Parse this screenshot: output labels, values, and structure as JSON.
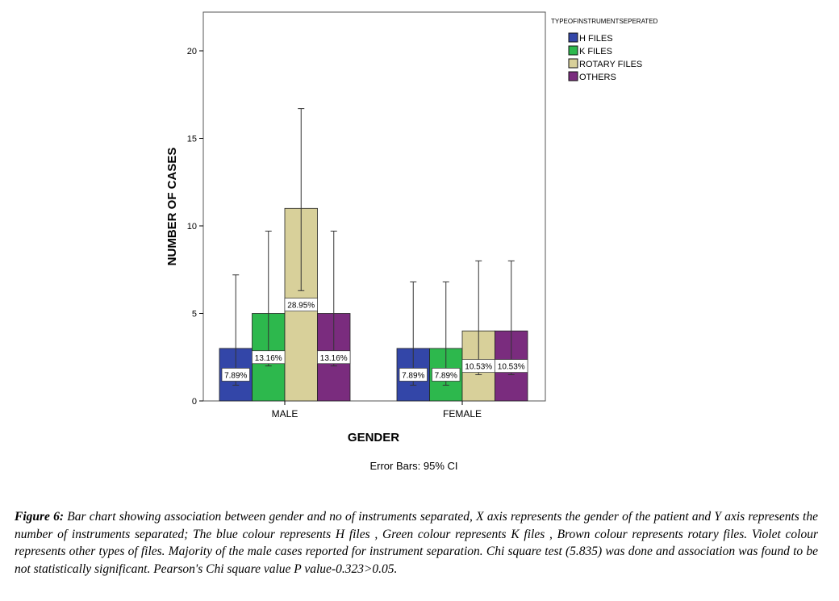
{
  "chart_data": {
    "type": "bar",
    "title": "",
    "xlabel": "GENDER",
    "ylabel": "NUMBER OF CASES",
    "ylim": [
      0,
      22
    ],
    "yticks": [
      0,
      5,
      10,
      15,
      20
    ],
    "categories": [
      "MALE",
      "FEMALE"
    ],
    "legend_title": "TYPEOFINSTRUMENTSEPERATED",
    "legend_position": "top-right",
    "note": "Error Bars: 95% CI",
    "series": [
      {
        "name": "H FILES",
        "color": "#3346a8",
        "values": [
          3,
          3
        ],
        "labels": [
          "7.89%",
          "7.89%"
        ],
        "ci_low": [
          0.9,
          0.9
        ],
        "ci_high": [
          7.2,
          6.8
        ]
      },
      {
        "name": "K FILES",
        "color": "#2db84d",
        "values": [
          5,
          3
        ],
        "labels": [
          "13.16%",
          "7.89%"
        ],
        "ci_low": [
          2.0,
          0.9
        ],
        "ci_high": [
          9.7,
          6.8
        ]
      },
      {
        "name": "ROTARY FILES",
        "color": "#d8d09a",
        "values": [
          11,
          4
        ],
        "labels": [
          "28.95%",
          "10.53%"
        ],
        "ci_low": [
          6.3,
          1.5
        ],
        "ci_high": [
          16.7,
          8.0
        ]
      },
      {
        "name": "OTHERS",
        "color": "#7a2c7e",
        "values": [
          5,
          4
        ],
        "labels": [
          "13.16%",
          "10.53%"
        ],
        "ci_low": [
          2.0,
          1.5
        ],
        "ci_high": [
          9.7,
          8.0
        ]
      }
    ]
  },
  "caption": {
    "label": "Figure 6:",
    "text": " Bar chart showing association between gender and no of instruments separated, X axis represents the gender of the patient and Y axis represents the number of instruments separated; The blue colour represents H files , Green colour represents K files , Brown colour represents rotary files. Violet colour represents other types of files. Majority of the male cases reported for instrument separation. Chi square test (5.835) was done and association was found to be not statistically significant. Pearson's Chi square value P value-0.323>0.05."
  }
}
